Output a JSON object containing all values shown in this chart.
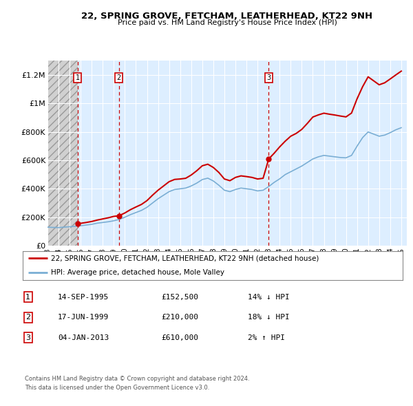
{
  "title": "22, SPRING GROVE, FETCHAM, LEATHERHEAD, KT22 9NH",
  "subtitle": "Price paid vs. HM Land Registry's House Price Index (HPI)",
  "legend_line1": "22, SPRING GROVE, FETCHAM, LEATHERHEAD, KT22 9NH (detached house)",
  "legend_line2": "HPI: Average price, detached house, Mole Valley",
  "footer1": "Contains HM Land Registry data © Crown copyright and database right 2024.",
  "footer2": "This data is licensed under the Open Government Licence v3.0.",
  "transactions": [
    {
      "num": 1,
      "date": "14-SEP-1995",
      "price": 152500,
      "pct": "14%",
      "dir": "↓"
    },
    {
      "num": 2,
      "date": "17-JUN-1999",
      "price": 210000,
      "pct": "18%",
      "dir": "↓"
    },
    {
      "num": 3,
      "date": "04-JAN-2013",
      "price": 610000,
      "pct": "2%",
      "dir": "↑"
    }
  ],
  "sale_years": [
    1995.71,
    1999.46,
    2013.01
  ],
  "sale_prices": [
    152500,
    210000,
    610000
  ],
  "hpi_years": [
    1993,
    1993.5,
    1994,
    1994.5,
    1995,
    1995.5,
    1996,
    1996.5,
    1997,
    1997.5,
    1998,
    1998.5,
    1999,
    1999.5,
    2000,
    2000.5,
    2001,
    2001.5,
    2002,
    2002.5,
    2003,
    2003.5,
    2004,
    2004.5,
    2005,
    2005.5,
    2006,
    2006.5,
    2007,
    2007.5,
    2008,
    2008.5,
    2009,
    2009.5,
    2010,
    2010.5,
    2011,
    2011.5,
    2012,
    2012.5,
    2013,
    2013.5,
    2014,
    2014.5,
    2015,
    2015.5,
    2016,
    2016.5,
    2017,
    2017.5,
    2018,
    2018.5,
    2019,
    2019.5,
    2020,
    2020.5,
    2021,
    2021.5,
    2022,
    2022.5,
    2023,
    2023.5,
    2024,
    2024.5,
    2025
  ],
  "hpi_values": [
    130000,
    128000,
    127000,
    130000,
    133000,
    136000,
    140000,
    145000,
    150000,
    158000,
    163000,
    168000,
    175000,
    185000,
    200000,
    218000,
    233000,
    248000,
    270000,
    300000,
    330000,
    355000,
    380000,
    395000,
    400000,
    405000,
    420000,
    440000,
    465000,
    475000,
    455000,
    425000,
    390000,
    380000,
    395000,
    405000,
    400000,
    395000,
    385000,
    390000,
    415000,
    445000,
    470000,
    500000,
    520000,
    540000,
    560000,
    585000,
    610000,
    625000,
    635000,
    630000,
    625000,
    620000,
    618000,
    635000,
    700000,
    760000,
    800000,
    785000,
    770000,
    778000,
    795000,
    815000,
    830000
  ],
  "prop_years": [
    1995.71,
    1996,
    1996.5,
    1997,
    1997.5,
    1998,
    1998.5,
    1999,
    1999.46,
    2000,
    2000.5,
    2001,
    2001.5,
    2002,
    2002.5,
    2003,
    2003.5,
    2004,
    2004.5,
    2005,
    2005.5,
    2006,
    2006.5,
    2007,
    2007.5,
    2008,
    2008.5,
    2009,
    2009.5,
    2010,
    2010.5,
    2011,
    2011.5,
    2012,
    2012.5,
    2013.01,
    2013.5,
    2014,
    2014.5,
    2015,
    2015.5,
    2016,
    2016.5,
    2017,
    2017.5,
    2018,
    2018.5,
    2019,
    2019.5,
    2020,
    2020.5,
    2021,
    2021.5,
    2022,
    2022.5,
    2023,
    2023.5,
    2024,
    2024.5,
    2025
  ],
  "prop_values": [
    152500,
    157000,
    163000,
    170000,
    180000,
    188000,
    196000,
    206000,
    210000,
    230000,
    253000,
    272000,
    290000,
    317000,
    355000,
    390000,
    420000,
    450000,
    466000,
    469000,
    474000,
    497000,
    527000,
    562000,
    573000,
    550000,
    515000,
    469000,
    457000,
    480000,
    491000,
    486000,
    480000,
    469000,
    474000,
    610000,
    650000,
    695000,
    735000,
    770000,
    790000,
    818000,
    860000,
    905000,
    920000,
    932000,
    925000,
    919000,
    912000,
    906000,
    933000,
    1033000,
    1118000,
    1188000,
    1160000,
    1132000,
    1146000,
    1173000,
    1201000,
    1228000
  ],
  "xlim": [
    1993,
    2025.5
  ],
  "ylim": [
    0,
    1300000
  ],
  "yticks": [
    0,
    200000,
    400000,
    600000,
    800000,
    1000000,
    1200000
  ],
  "ytick_labels": [
    "£0",
    "£200K",
    "£400K",
    "£600K",
    "£800K",
    "£1M",
    "£1.2M"
  ],
  "xticks": [
    1993,
    1994,
    1995,
    1996,
    1997,
    1998,
    1999,
    2000,
    2001,
    2002,
    2003,
    2004,
    2005,
    2006,
    2007,
    2008,
    2009,
    2010,
    2011,
    2012,
    2013,
    2014,
    2015,
    2016,
    2017,
    2018,
    2019,
    2020,
    2021,
    2022,
    2023,
    2024,
    2025
  ],
  "prop_color": "#cc0000",
  "hpi_color": "#7aaed4",
  "sale_dot_color": "#cc0000",
  "dashed_vline_color": "#cc0000",
  "bg_color": "#ddeeff",
  "hatch_bg_color": "#d0d0d0"
}
